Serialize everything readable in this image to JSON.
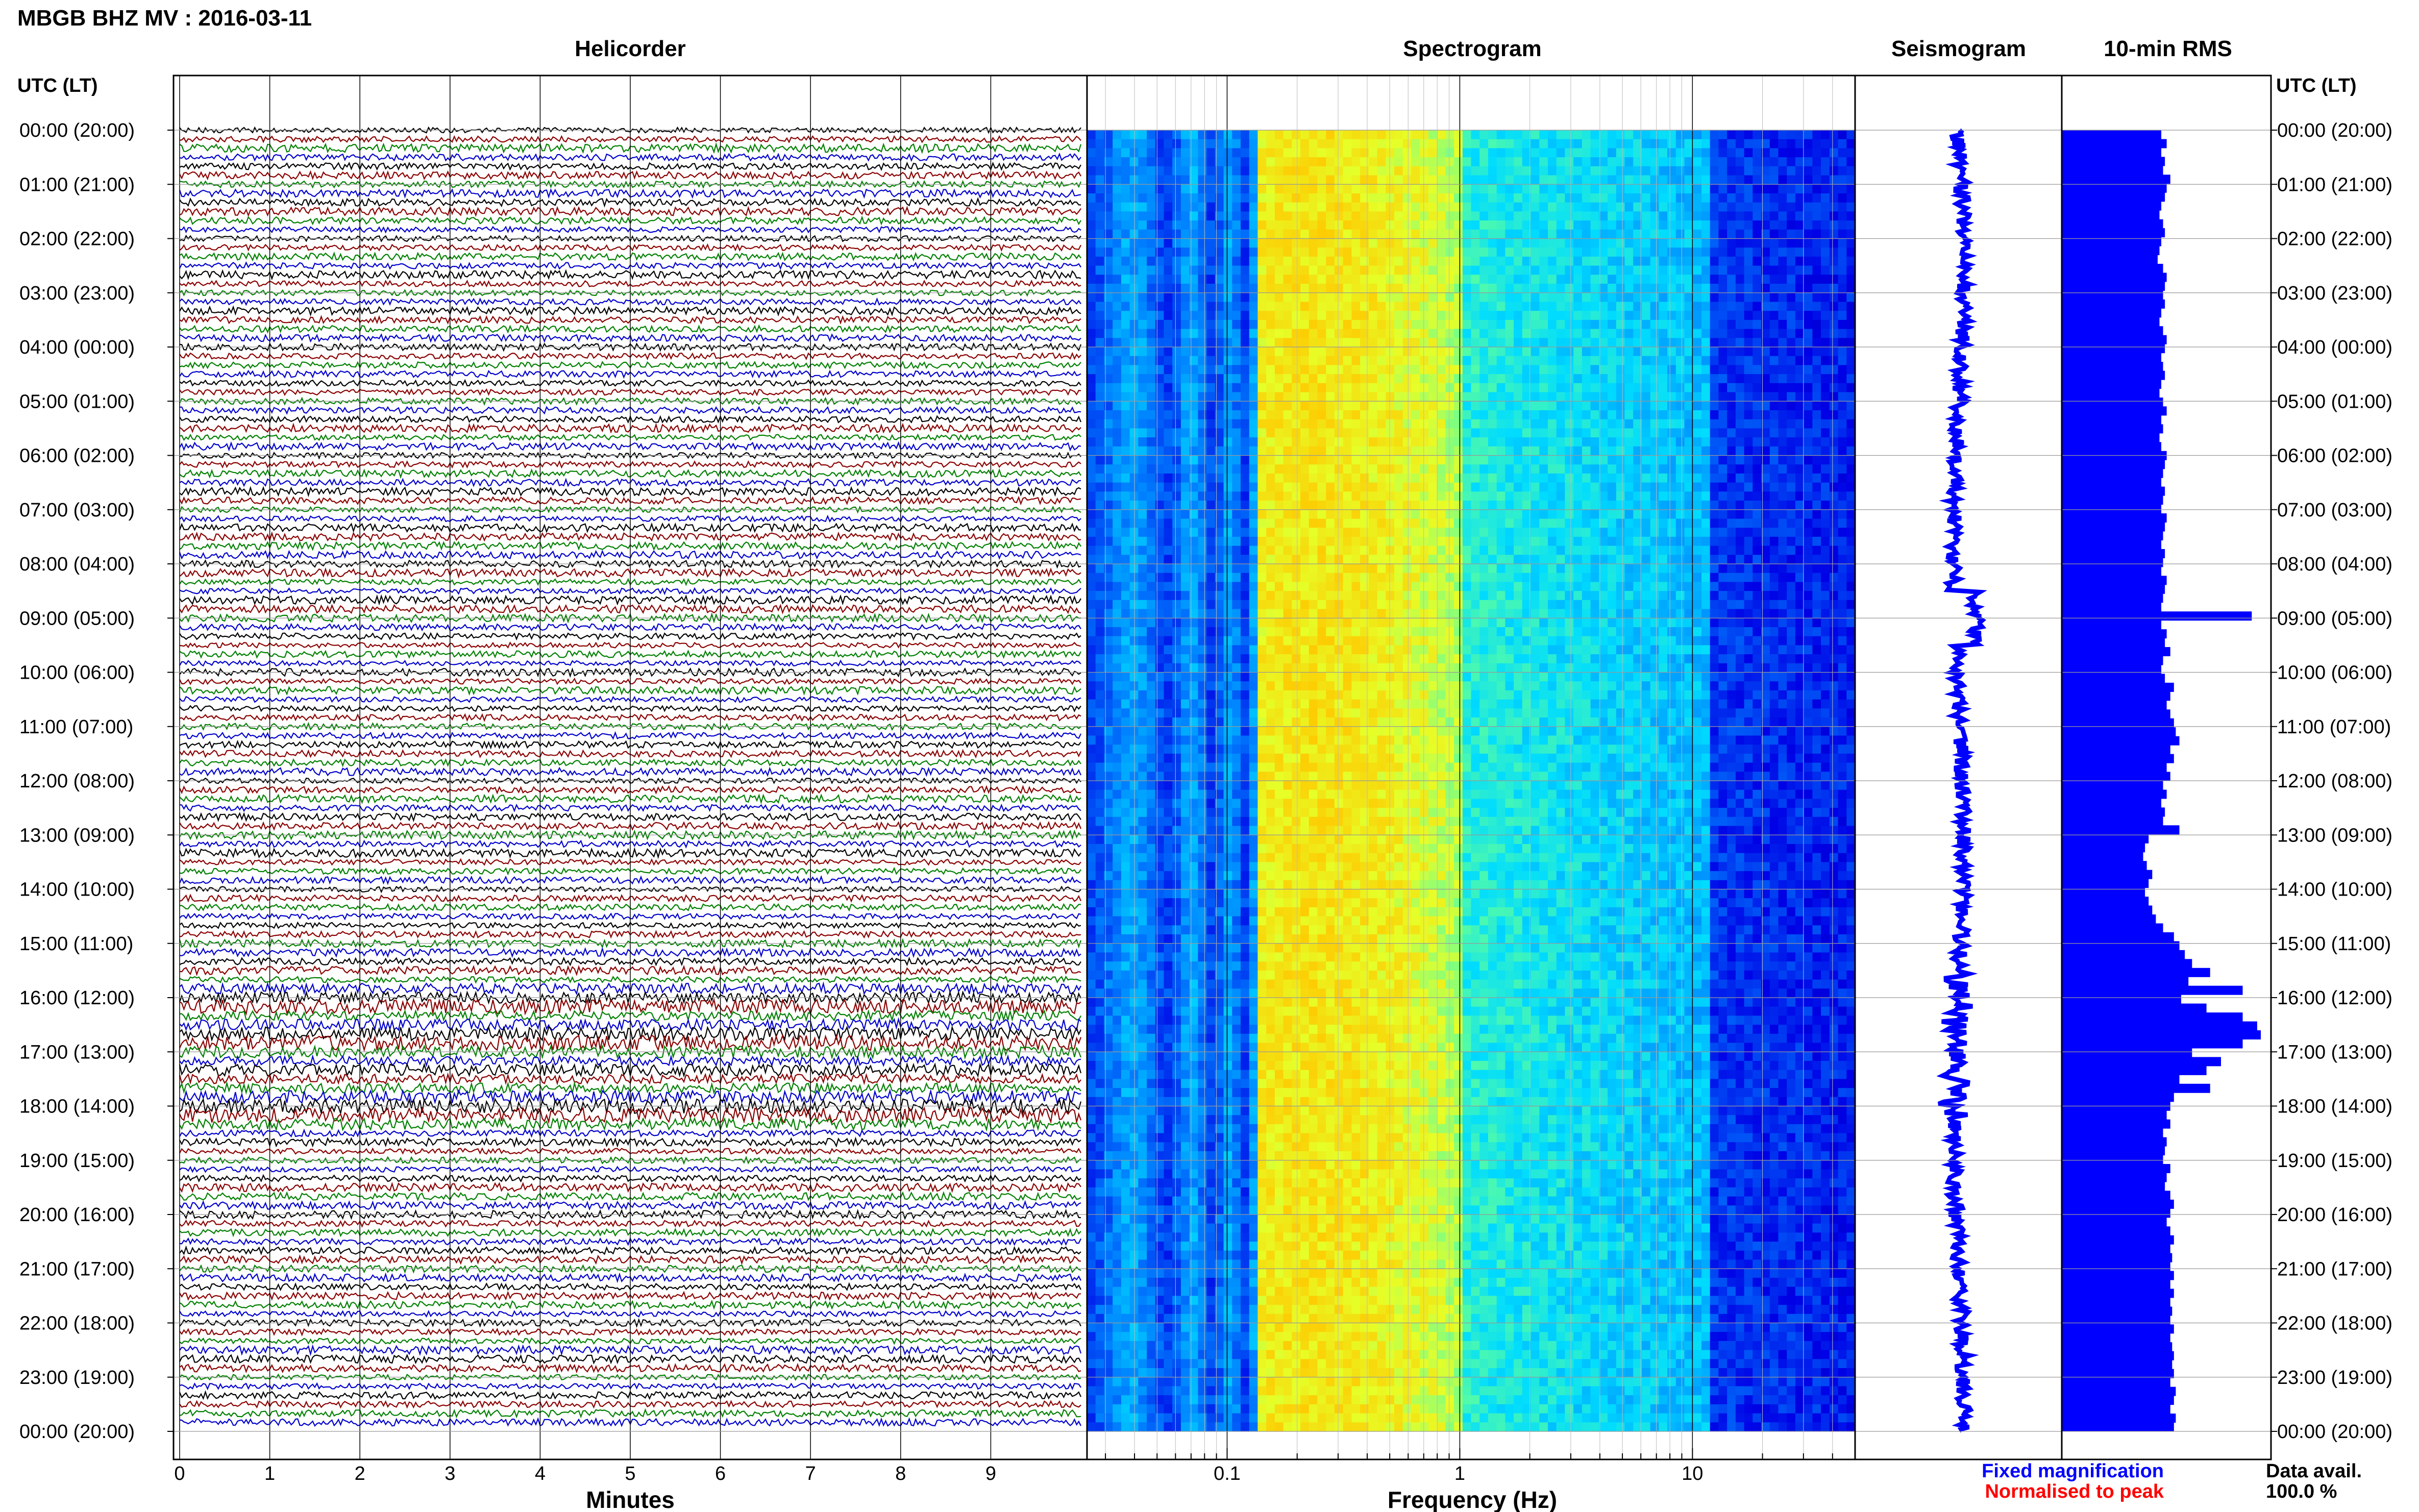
{
  "header": {
    "title": "MBGB BHZ MV : 2016-03-11",
    "utc_label_left": "UTC (LT)",
    "utc_label_right": "UTC (LT)"
  },
  "panels": {
    "helicorder": "Helicorder",
    "spectrogram": "Spectrogram",
    "seismogram": "Seismogram",
    "rms": "10-min RMS"
  },
  "axes": {
    "minutes_label": "Minutes",
    "frequency_label": "Frequency (Hz)"
  },
  "legend": {
    "fixed": "Fixed magnification",
    "normalised": "Normalised to peak",
    "fixed_color": "#0000ff",
    "normalised_color": "#ff0000"
  },
  "availability": {
    "label": "Data avail.",
    "value": "100.0 %"
  },
  "chart_data": {
    "type": "heatmap",
    "time_labels": [
      "00:00 (20:00)",
      "01:00 (21:00)",
      "02:00 (22:00)",
      "03:00 (23:00)",
      "04:00 (00:00)",
      "05:00 (01:00)",
      "06:00 (02:00)",
      "07:00 (03:00)",
      "08:00 (04:00)",
      "09:00 (05:00)",
      "10:00 (06:00)",
      "11:00 (07:00)",
      "12:00 (08:00)",
      "13:00 (09:00)",
      "14:00 (10:00)",
      "15:00 (11:00)",
      "16:00 (12:00)",
      "17:00 (13:00)",
      "18:00 (14:00)",
      "19:00 (15:00)",
      "20:00 (16:00)",
      "21:00 (17:00)",
      "22:00 (18:00)",
      "23:00 (19:00)",
      "00:00 (20:00)"
    ],
    "minute_ticks": [
      "0",
      "1",
      "2",
      "3",
      "4",
      "5",
      "6",
      "7",
      "8",
      "9"
    ],
    "frequency_ticks": [
      {
        "value": 0.1,
        "label": "0.1"
      },
      {
        "value": 1,
        "label": "1"
      },
      {
        "value": 10,
        "label": "10"
      }
    ],
    "frequency_range": [
      0.025,
      50
    ],
    "minutes_range": [
      0,
      10
    ],
    "helicorder_colors": [
      "#000000",
      "#8b0000",
      "#008000",
      "#0000cd"
    ],
    "rms_relative": [
      0.55,
      0.58,
      0.55,
      0.57,
      0.56,
      0.6,
      0.58,
      0.57,
      0.55,
      0.54,
      0.56,
      0.57,
      0.55,
      0.54,
      0.53,
      0.56,
      0.58,
      0.57,
      0.56,
      0.57,
      0.55,
      0.54,
      0.56,
      0.58,
      0.57,
      0.55,
      0.56,
      0.57,
      0.55,
      0.54,
      0.56,
      0.58,
      0.55,
      0.56,
      0.54,
      0.55,
      0.58,
      0.57,
      0.56,
      0.55,
      0.57,
      0.56,
      0.55,
      0.58,
      0.57,
      0.56,
      0.55,
      0.57,
      0.56,
      0.55,
      0.58,
      0.57,
      0.56,
      0.55,
      1.05,
      0.55,
      0.58,
      0.57,
      0.6,
      0.56,
      0.55,
      0.57,
      0.62,
      0.6,
      0.58,
      0.6,
      0.62,
      0.63,
      0.65,
      0.6,
      0.62,
      0.58,
      0.6,
      0.56,
      0.58,
      0.55,
      0.57,
      0.56,
      0.65,
      0.48,
      0.46,
      0.45,
      0.47,
      0.5,
      0.48,
      0.46,
      0.48,
      0.5,
      0.52,
      0.56,
      0.62,
      0.65,
      0.68,
      0.72,
      0.82,
      0.7,
      1.0,
      0.66,
      0.8,
      1.0,
      1.08,
      1.1,
      1.0,
      0.72,
      0.88,
      0.8,
      0.65,
      0.82,
      0.62,
      0.6,
      0.58,
      0.6,
      0.56,
      0.58,
      0.57,
      0.56,
      0.6,
      0.58,
      0.57,
      0.6,
      0.62,
      0.6,
      0.58,
      0.6,
      0.62,
      0.6,
      0.61,
      0.6,
      0.62,
      0.6,
      0.62,
      0.6,
      0.61,
      0.6,
      0.62,
      0.6,
      0.61,
      0.62,
      0.61,
      0.62,
      0.6,
      0.63,
      0.62,
      0.6,
      0.63,
      0.62
    ]
  }
}
